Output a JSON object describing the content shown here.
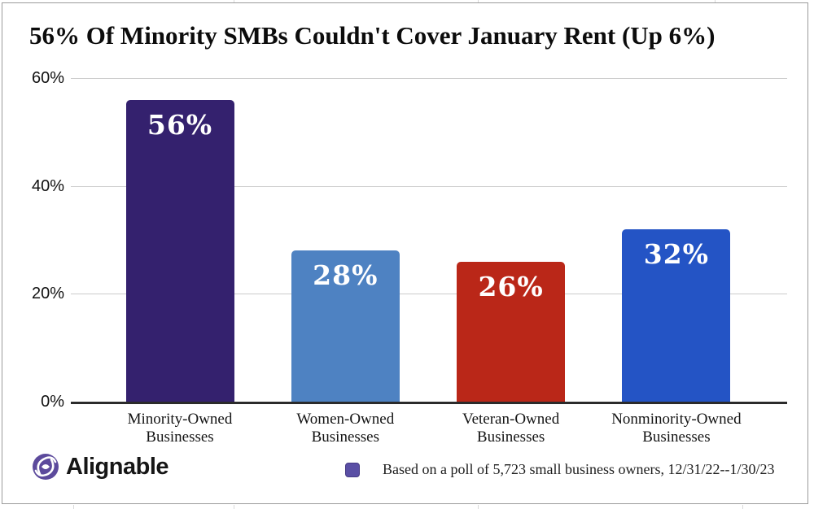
{
  "header": {
    "title": "56% Of Minority SMBs Couldn't Cover January Rent (Up 6%)"
  },
  "chart_data": {
    "type": "bar",
    "title": "56% Of Minority SMBs Couldn't Cover January Rent (Up 6%)",
    "categories": [
      "Minority-Owned Businesses",
      "Women-Owned Businesses",
      "Veteran-Owned Businesses",
      "Nonminority-Owned Businesses"
    ],
    "values": [
      56,
      28,
      26,
      32
    ],
    "value_labels": [
      "56%",
      "28%",
      "26%",
      "32%"
    ],
    "bar_colors": [
      "#34216E",
      "#4E82C2",
      "#BA2718",
      "#2454C5"
    ],
    "xlabel": "",
    "ylabel": "",
    "ylim": [
      0,
      60
    ],
    "yticks": [
      0,
      20,
      40,
      60
    ],
    "ytick_labels": [
      "0%",
      "20%",
      "40%",
      "60%"
    ],
    "grid": "horizontal",
    "gridline_color": "#cccccc",
    "legend_position": "bottom-right"
  },
  "footer": {
    "brand": "Alignable",
    "brand_icon": "alignable-swirl-icon",
    "brand_color": "#5C4A9C",
    "note_swatch_color": "#5a4fa5",
    "note": "Based on a poll of 5,723 small business owners, 12/31/22--1/30/23"
  }
}
